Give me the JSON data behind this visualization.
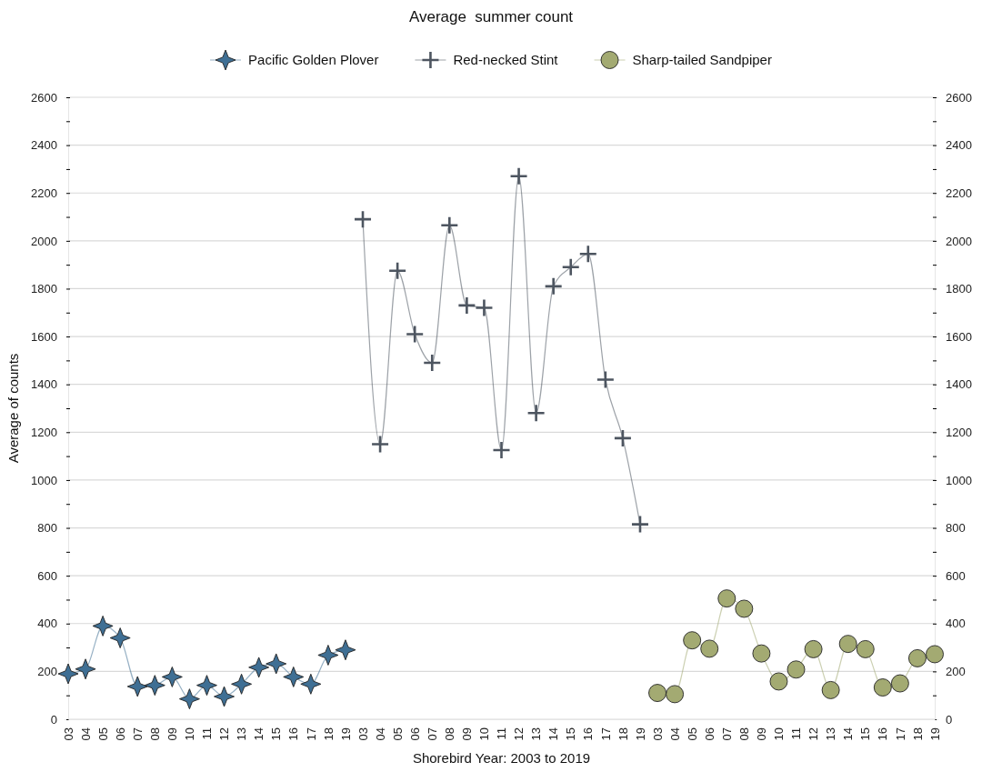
{
  "chart_data": {
    "type": "line",
    "title": "Average  summer count",
    "xlabel": "Shorebird Year: 2003 to 2019",
    "ylabel": "Average of counts",
    "categories": [
      "03",
      "04",
      "05",
      "06",
      "07",
      "08",
      "09",
      "10",
      "11",
      "12",
      "13",
      "14",
      "15",
      "16",
      "17",
      "18",
      "19",
      "03",
      "04",
      "05",
      "06",
      "07",
      "08",
      "09",
      "10",
      "11",
      "12",
      "13",
      "14",
      "15",
      "16",
      "17",
      "18",
      "19",
      "03",
      "04",
      "05",
      "06",
      "07",
      "08",
      "09",
      "10",
      "11",
      "12",
      "13",
      "14",
      "15",
      "16",
      "17",
      "18",
      "19"
    ],
    "series": [
      {
        "name": "Pacific Golden Plover",
        "color": "#3f6f94",
        "marker": "star",
        "values": [
          190,
          210,
          390,
          340,
          137,
          142,
          177,
          85,
          142,
          95,
          147,
          217,
          232,
          177,
          147,
          268,
          290,
          null,
          null,
          null,
          null,
          null,
          null,
          null,
          null,
          null,
          null,
          null,
          null,
          null,
          null,
          null,
          null,
          null,
          null,
          null,
          null,
          null,
          null,
          null,
          null,
          null,
          null,
          null,
          null,
          null,
          null,
          null,
          null,
          null,
          null
        ]
      },
      {
        "name": "Red-necked Stint",
        "color": "#4d5560",
        "marker": "cross",
        "values": [
          null,
          null,
          null,
          null,
          null,
          null,
          null,
          null,
          null,
          null,
          null,
          null,
          null,
          null,
          null,
          null,
          null,
          2090,
          1150,
          1875,
          1610,
          1490,
          2065,
          1730,
          1720,
          1125,
          2270,
          1280,
          1810,
          1890,
          1945,
          1420,
          1175,
          815,
          null,
          null,
          null,
          null,
          null,
          null,
          null,
          null,
          null,
          null,
          null,
          null,
          null,
          null,
          null,
          null,
          null
        ]
      },
      {
        "name": "Sharp-tailed Sandpiper",
        "color": "#a3aa72",
        "marker": "circle",
        "values": [
          null,
          null,
          null,
          null,
          null,
          null,
          null,
          null,
          null,
          null,
          null,
          null,
          null,
          null,
          null,
          null,
          null,
          null,
          null,
          null,
          null,
          null,
          null,
          null,
          null,
          null,
          null,
          null,
          null,
          null,
          null,
          null,
          null,
          null,
          110,
          105,
          330,
          295,
          505,
          462,
          275,
          158,
          208,
          293,
          122,
          315,
          293,
          133,
          150,
          255,
          272
        ]
      }
    ],
    "ylim": [
      0,
      2600
    ],
    "yticks": [
      0,
      {
        "value": 100,
        "label": null
      },
      200,
      {
        "value": 300,
        "label": null
      },
      400,
      {
        "value": 500,
        "label": null
      },
      600,
      {
        "value": 700,
        "label": null
      },
      800,
      {
        "value": 900,
        "label": null
      },
      1000,
      {
        "value": 1100,
        "label": null
      },
      1200,
      {
        "value": 1300,
        "label": null
      },
      1400,
      {
        "value": 1500,
        "label": null
      },
      1600,
      {
        "value": 1700,
        "label": null
      },
      1800,
      {
        "value": 1900,
        "label": null
      },
      2000,
      {
        "value": 2100,
        "label": null
      },
      2200,
      {
        "value": 2300,
        "label": null
      },
      2400,
      {
        "value": 2500,
        "label": null
      },
      2600
    ],
    "y2lim": [
      0,
      2600
    ],
    "y2ticks": [
      0,
      {
        "value": 100,
        "label": null
      },
      200,
      {
        "value": 300,
        "label": null
      },
      400,
      {
        "value": 500,
        "label": null
      },
      600,
      {
        "value": 700,
        "label": null
      },
      800,
      {
        "value": 900,
        "label": null
      },
      1000,
      {
        "value": 1100,
        "label": null
      },
      1200,
      {
        "value": 1300,
        "label": null
      },
      1400,
      {
        "value": 1500,
        "label": null
      },
      1600,
      {
        "value": 1700,
        "label": null
      },
      1800,
      {
        "value": 1900,
        "label": null
      },
      2000,
      {
        "value": 2100,
        "label": null
      },
      2200,
      {
        "value": 2300,
        "label": null
      },
      2400,
      {
        "value": 2500,
        "label": null
      },
      2600
    ],
    "grid": "y",
    "legend": "top"
  }
}
